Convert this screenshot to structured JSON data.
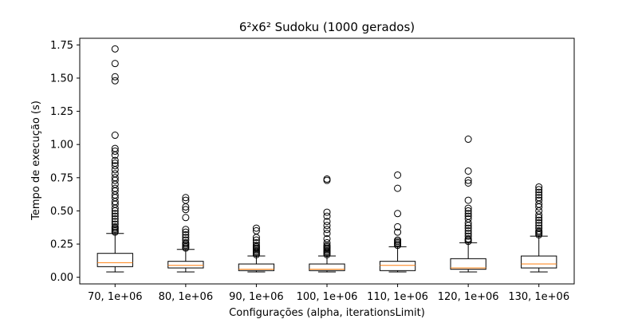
{
  "chart_data": {
    "type": "boxplot",
    "title": "6²x6² Sudoku (1000 gerados)",
    "xlabel": "Configurações (alpha, iterationsLimit)",
    "ylabel": "Tempo de execução (s)",
    "ylim": [
      -0.05,
      1.8
    ],
    "yticks": [
      "0.00",
      "0.25",
      "0.50",
      "0.75",
      "1.00",
      "1.25",
      "1.50",
      "1.75"
    ],
    "grid": false,
    "colors": {
      "box": "#000000",
      "median": "#ff7f0e",
      "outlier": "#000000"
    },
    "categories": [
      "70, 1e+06",
      "80, 1e+06",
      "90, 1e+06",
      "100, 1e+06",
      "110, 1e+06",
      "120, 1e+06",
      "130, 1e+06"
    ],
    "boxes": [
      {
        "whisker_low": 0.04,
        "q1": 0.08,
        "median": 0.11,
        "q3": 0.18,
        "whisker_high": 0.33,
        "outliers": [
          0.34,
          0.35,
          0.36,
          0.37,
          0.38,
          0.4,
          0.42,
          0.44,
          0.46,
          0.48,
          0.5,
          0.52,
          0.55,
          0.57,
          0.6,
          0.62,
          0.65,
          0.67,
          0.7,
          0.73,
          0.75,
          0.78,
          0.81,
          0.84,
          0.86,
          0.88,
          0.92,
          0.95,
          0.97,
          1.07,
          1.48,
          1.51,
          1.61,
          1.72
        ]
      },
      {
        "whisker_low": 0.04,
        "q1": 0.07,
        "median": 0.09,
        "q3": 0.12,
        "whisker_high": 0.21,
        "outliers": [
          0.22,
          0.23,
          0.24,
          0.25,
          0.26,
          0.28,
          0.3,
          0.32,
          0.34,
          0.36,
          0.45,
          0.51,
          0.53,
          0.58,
          0.6
        ]
      },
      {
        "whisker_low": 0.04,
        "q1": 0.05,
        "median": 0.06,
        "q3": 0.1,
        "whisker_high": 0.16,
        "outliers": [
          0.17,
          0.18,
          0.19,
          0.2,
          0.21,
          0.22,
          0.23,
          0.24,
          0.26,
          0.28,
          0.3,
          0.35,
          0.37
        ]
      },
      {
        "whisker_low": 0.04,
        "q1": 0.05,
        "median": 0.06,
        "q3": 0.1,
        "whisker_high": 0.16,
        "outliers": [
          0.17,
          0.18,
          0.19,
          0.2,
          0.21,
          0.22,
          0.23,
          0.24,
          0.26,
          0.29,
          0.33,
          0.36,
          0.39,
          0.42,
          0.46,
          0.49,
          0.73,
          0.74
        ]
      },
      {
        "whisker_low": 0.04,
        "q1": 0.05,
        "median": 0.09,
        "q3": 0.12,
        "whisker_high": 0.23,
        "outliers": [
          0.24,
          0.25,
          0.26,
          0.27,
          0.28,
          0.34,
          0.38,
          0.48,
          0.67,
          0.77
        ]
      },
      {
        "whisker_low": 0.04,
        "q1": 0.06,
        "median": 0.07,
        "q3": 0.14,
        "whisker_high": 0.26,
        "outliers": [
          0.27,
          0.28,
          0.29,
          0.31,
          0.33,
          0.35,
          0.37,
          0.39,
          0.41,
          0.44,
          0.46,
          0.48,
          0.5,
          0.52,
          0.58,
          0.71,
          0.73,
          0.8,
          1.04
        ]
      },
      {
        "whisker_low": 0.04,
        "q1": 0.07,
        "median": 0.1,
        "q3": 0.16,
        "whisker_high": 0.31,
        "outliers": [
          0.32,
          0.33,
          0.34,
          0.35,
          0.37,
          0.39,
          0.41,
          0.43,
          0.45,
          0.47,
          0.5,
          0.53,
          0.55,
          0.58,
          0.6,
          0.62,
          0.64,
          0.66,
          0.68
        ]
      }
    ]
  }
}
